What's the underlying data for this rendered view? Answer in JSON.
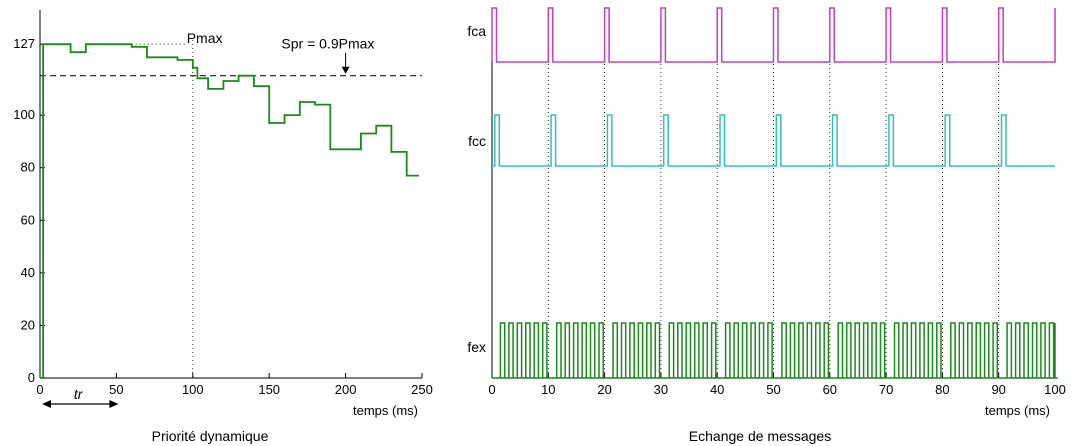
{
  "chart_data": [
    {
      "type": "line",
      "title": "Priorité dynamique",
      "xlabel": "temps (ms)",
      "ylabel": "",
      "xlim": [
        0,
        250
      ],
      "ylim": [
        0,
        140
      ],
      "xticks": [
        0,
        50,
        100,
        150,
        200,
        250
      ],
      "yticks": [
        0,
        20,
        40,
        60,
        80,
        100,
        127
      ],
      "series": [
        {
          "color": "#1a8a1a",
          "x": [
            0,
            2,
            2,
            20,
            20,
            30,
            30,
            60,
            60,
            70,
            70,
            90,
            90,
            100,
            100,
            103,
            103,
            110,
            110,
            120,
            120,
            130,
            130,
            140,
            140,
            150,
            150,
            160,
            160,
            170,
            170,
            180,
            180,
            190,
            190,
            200,
            200,
            210,
            210,
            220,
            220,
            230,
            230,
            240,
            240,
            248
          ],
          "y": [
            0,
            0,
            127,
            127,
            124,
            124,
            127,
            127,
            126,
            126,
            122,
            122,
            121,
            121,
            118,
            118,
            114,
            114,
            110,
            110,
            113,
            113,
            115,
            115,
            111,
            111,
            97,
            97,
            100,
            100,
            105,
            105,
            104,
            104,
            87,
            87,
            87,
            87,
            93,
            93,
            96,
            96,
            86,
            86,
            77,
            77
          ]
        }
      ],
      "annotations": [
        {
          "text": "Pmax",
          "y": 127,
          "style": "dotted"
        },
        {
          "text": "Spr = 0.9Pmax",
          "y": 115,
          "style": "dashed"
        },
        {
          "text": "tr",
          "x_range": [
            0,
            50
          ],
          "style": "double-arrow"
        }
      ],
      "vlines": [
        100
      ],
      "grid": false
    },
    {
      "type": "line",
      "title": "Echange de messages",
      "xlabel": "temps (ms)",
      "ylabel": "",
      "xlim": [
        0,
        100
      ],
      "xticks": [
        0,
        10,
        20,
        30,
        40,
        50,
        60,
        70,
        80,
        90,
        100
      ],
      "vlines": [
        10,
        20,
        30,
        40,
        50,
        60,
        70,
        80,
        90
      ],
      "grid": false,
      "series": [
        {
          "name": "fca",
          "color": "#c040c0",
          "pulse_times": [
            0,
            10,
            20,
            30,
            40,
            50,
            60,
            70,
            80,
            90,
            100
          ],
          "pulse_width": 0.8
        },
        {
          "name": "fcc",
          "color": "#30c0c0",
          "pulse_times": [
            0.5,
            10.5,
            20.5,
            30.5,
            40.5,
            50.5,
            60.5,
            70.5,
            80.5,
            90.5
          ],
          "pulse_width": 0.8
        },
        {
          "name": "fex",
          "color": "#1a8a1a",
          "burst_period_ms": 10,
          "burst_start_ms": 1.5,
          "burst_pulses": 6,
          "burst_end_ms": 100
        }
      ]
    }
  ]
}
